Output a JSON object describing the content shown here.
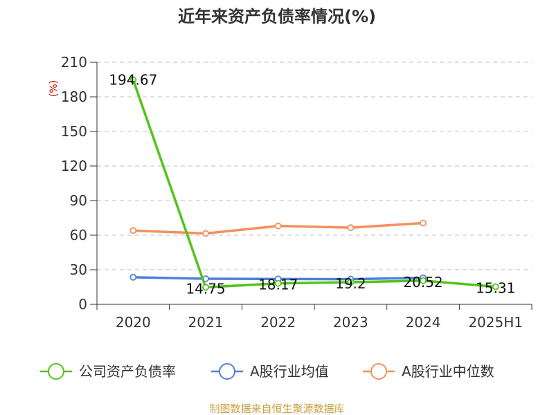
{
  "chart_data": {
    "type": "line",
    "title": "近年来资产负债率情况(%)",
    "ylabel": "(%)",
    "categories": [
      "2020",
      "2021",
      "2022",
      "2023",
      "2024",
      "2025H1"
    ],
    "ylim": [
      0,
      210
    ],
    "yticks": [
      0,
      30,
      60,
      90,
      120,
      150,
      180,
      210
    ],
    "grid": true,
    "legend_position": "bottom",
    "series": [
      {
        "name": "公司资产负债率",
        "color": "#52c41a",
        "values": [
          194.67,
          14.75,
          18.17,
          19.2,
          20.52,
          15.31
        ],
        "labels": [
          "194.67",
          "14.75",
          "18.17",
          "19.2",
          "20.52",
          "15.31"
        ]
      },
      {
        "name": "A股行业均值",
        "color": "#4f7fdc",
        "values": [
          23.5,
          22.2,
          22.0,
          21.8,
          23.0,
          null
        ]
      },
      {
        "name": "A股行业中位数",
        "color": "#f4905c",
        "values": [
          64.0,
          61.5,
          68.0,
          66.5,
          70.5,
          null
        ]
      }
    ],
    "source": "制图数据来自恒生聚源数据库"
  }
}
